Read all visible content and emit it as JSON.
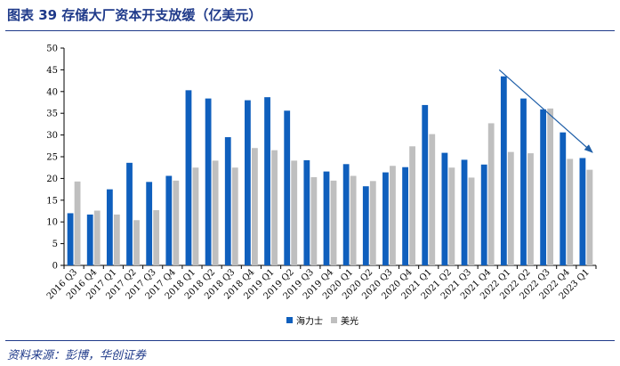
{
  "header": {
    "title": "图表 39  存储大厂资本开支放缓（亿美元）"
  },
  "footer": {
    "source": "资料来源：彭博，华创证券"
  },
  "chart_data": {
    "type": "bar",
    "title": "",
    "xlabel": "",
    "ylabel": "",
    "ylim": [
      0,
      50
    ],
    "yticks": [
      0,
      5,
      10,
      15,
      20,
      25,
      30,
      35,
      40,
      45,
      50
    ],
    "grid": false,
    "legend_position": "bottom",
    "categories": [
      "2016 Q3",
      "2016 Q4",
      "2017 Q1",
      "2017 Q2",
      "2017 Q3",
      "2017 Q4",
      "2018 Q1",
      "2018 Q2",
      "2018 Q3",
      "2018 Q4",
      "2019 Q1",
      "2019 Q2",
      "2019 Q3",
      "2019 Q4",
      "2020 Q1",
      "2020 Q2",
      "2020 Q3",
      "2020 Q4",
      "2021 Q1",
      "2021 Q2",
      "2021 Q3",
      "2021 Q4",
      "2022 Q1",
      "2022 Q2",
      "2022 Q3",
      "2022 Q4",
      "2023 Q1"
    ],
    "series": [
      {
        "name": "海力士",
        "color": "#0f5fbd",
        "values": [
          12.0,
          11.7,
          17.5,
          23.6,
          19.2,
          20.6,
          40.3,
          38.4,
          29.5,
          38.0,
          38.7,
          35.6,
          24.2,
          21.6,
          23.3,
          18.2,
          21.4,
          22.6,
          36.9,
          25.9,
          24.3,
          23.2,
          43.5,
          38.4,
          35.9,
          30.6,
          24.7
        ]
      },
      {
        "name": "美光",
        "color": "#bfbfbf",
        "values": [
          19.3,
          12.6,
          11.7,
          10.4,
          12.7,
          19.5,
          22.5,
          24.1,
          22.5,
          27.0,
          26.5,
          24.1,
          20.3,
          19.5,
          20.6,
          19.4,
          22.9,
          27.4,
          30.2,
          22.5,
          20.2,
          32.7,
          26.1,
          25.8,
          36.1,
          24.5,
          22.0
        ]
      }
    ],
    "annotations": [
      {
        "type": "arrow",
        "description": "downward trend arrow",
        "from_category": "2022 Q1",
        "to_category": "2023 Q1",
        "from_value": 45.0,
        "to_value": 26.0,
        "color": "#1f5fa8"
      }
    ]
  }
}
